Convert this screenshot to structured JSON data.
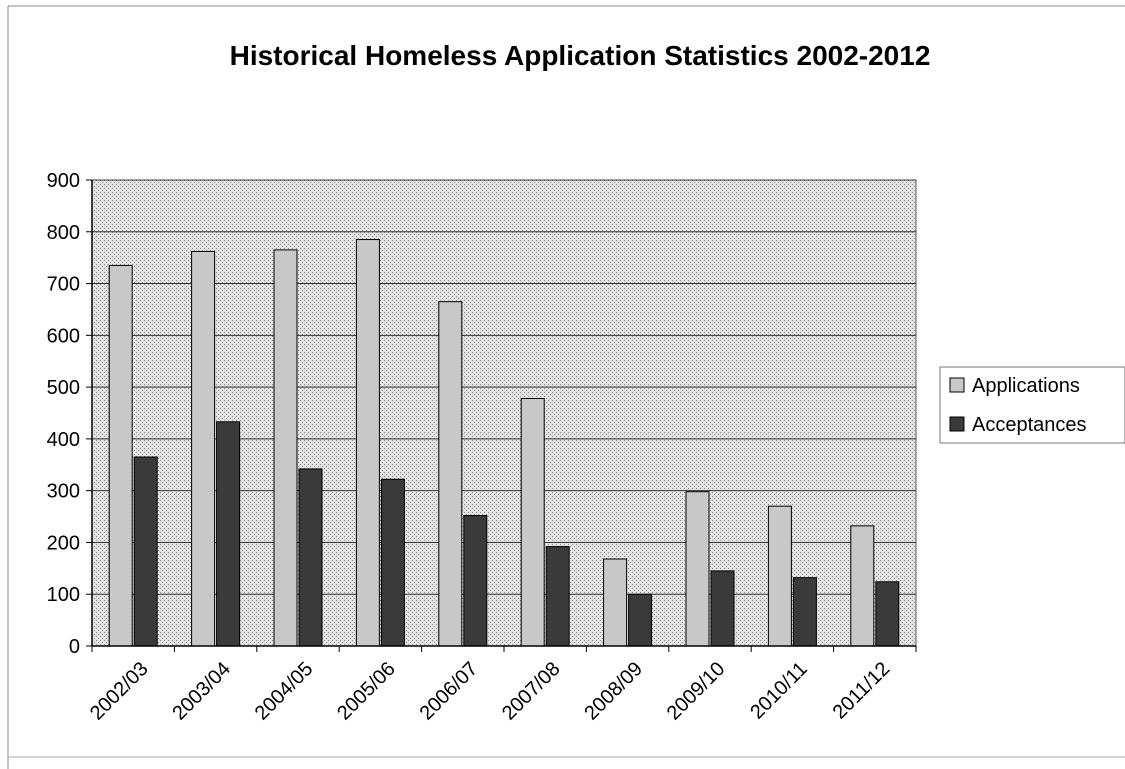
{
  "chart_data": {
    "type": "bar",
    "title": "Historical Homeless Application Statistics 2002-2012",
    "xlabel": "",
    "ylabel": "",
    "categories": [
      "2002/03",
      "2003/04",
      "2004/05",
      "2005/06",
      "2006/07",
      "2007/08",
      "2008/09",
      "2009/10",
      "2010/11",
      "2011/12"
    ],
    "series": [
      {
        "name": "Applications",
        "color": "#c8c8c8",
        "values": [
          735,
          762,
          765,
          785,
          665,
          478,
          168,
          298,
          270,
          232
        ]
      },
      {
        "name": "Acceptances",
        "color": "#3a3a3a",
        "values": [
          365,
          433,
          342,
          322,
          252,
          192,
          100,
          145,
          132,
          124
        ]
      }
    ],
    "ylim": [
      0,
      900
    ],
    "yticks": [
      "0",
      "100",
      "200",
      "300",
      "400",
      "500",
      "600",
      "700",
      "800",
      "900"
    ],
    "grid": true,
    "legend_position": "right"
  }
}
